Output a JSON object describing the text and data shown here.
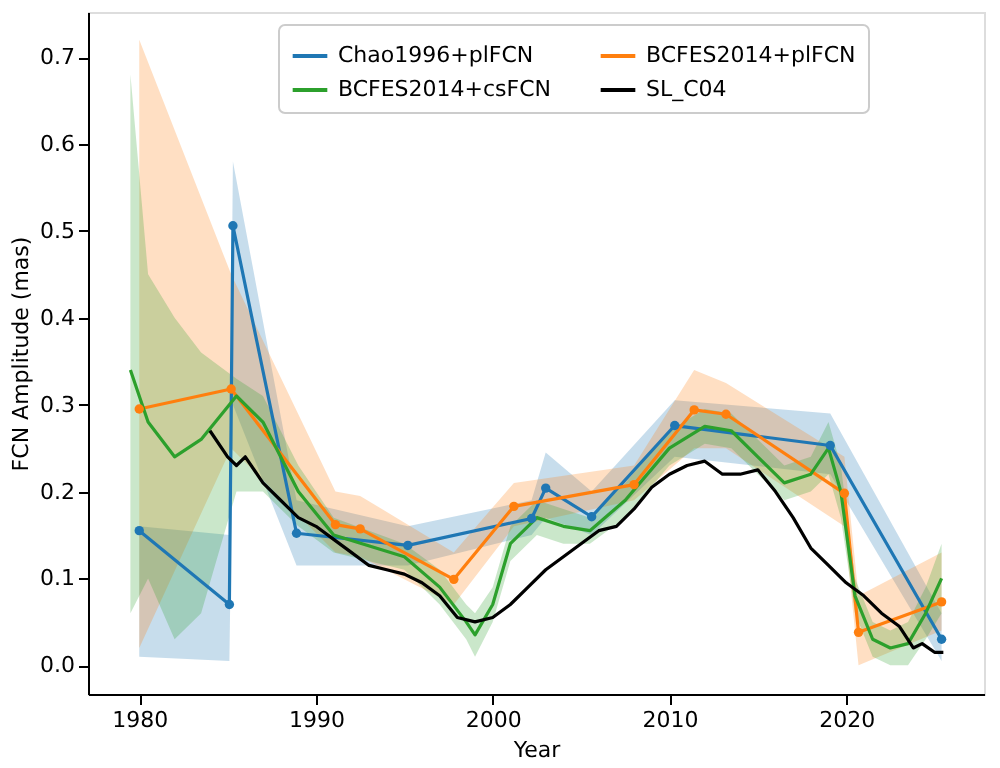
{
  "chart_data": {
    "type": "line",
    "xlabel": "Year",
    "ylabel": "FCN Amplitude (mas)",
    "xlim": [
      1977.1,
      2027.8
    ],
    "ylim": [
      -0.033,
      0.752
    ],
    "xticks": [
      1980,
      1990,
      2000,
      2010,
      2020
    ],
    "yticks": [
      {
        "value": 0,
        "label": "0.0"
      },
      0.1,
      0.2,
      0.3,
      0.4,
      0.5,
      0.6,
      0.7
    ],
    "grid": false,
    "legend": "top",
    "line_style": "solid",
    "series": [
      {
        "name": "Chao1996+plFCN",
        "color": "#1f77b4",
        "marker": "circle",
        "x": [
          1980,
          1985.1,
          1985.3,
          1988.9,
          1995.2,
          2002.2,
          2003,
          2005.6,
          2010.3,
          2019.1,
          2025.4
        ],
        "values": [
          0.155,
          0.07,
          0.506,
          0.152,
          0.138,
          0.169,
          0.204,
          0.171,
          0.276,
          0.253,
          0.03
        ],
        "lower": [
          0.01,
          0.005,
          0.3,
          0.115,
          0.115,
          0.15,
          0.17,
          0.15,
          0.24,
          0.22,
          0.005
        ],
        "upper": [
          0.16,
          0.15,
          0.58,
          0.19,
          0.16,
          0.19,
          0.245,
          0.2,
          0.305,
          0.29,
          0.06
        ]
      },
      {
        "name": "BCFES2014+plFCN",
        "color": "#ff7f0e",
        "marker": "circle",
        "x": [
          1980,
          1985.2,
          1991.1,
          1992.5,
          1997.8,
          2001.2,
          2008,
          2011.4,
          2013.2,
          2019.9,
          2020.7,
          2025.4
        ],
        "values": [
          0.295,
          0.318,
          0.162,
          0.157,
          0.099,
          0.183,
          0.208,
          0.294,
          0.289,
          0.198,
          0.038,
          0.073
        ],
        "lower": [
          0.02,
          0.25,
          0.13,
          0.125,
          0.07,
          0.16,
          0.19,
          0.25,
          0.25,
          0.16,
          0.0,
          0.04
        ],
        "upper": [
          0.72,
          0.45,
          0.2,
          0.195,
          0.13,
          0.21,
          0.23,
          0.34,
          0.325,
          0.24,
          0.08,
          0.13
        ]
      },
      {
        "name": "BCFES2014+csFCN",
        "color": "#2ca02c",
        "marker": "none",
        "x": [
          1979.5,
          1980.5,
          1982,
          1983.5,
          1985.5,
          1987,
          1989,
          1991,
          1995,
          1997,
          1998.5,
          1999,
          2000,
          2001,
          2002.5,
          2004,
          2005.5,
          2007.5,
          2010,
          2012,
          2013.5,
          2015,
          2016.5,
          2018,
          2019,
          2019.7,
          2020.5,
          2021.5,
          2022.5,
          2023.5,
          2024.5,
          2025.4
        ],
        "values": [
          0.34,
          0.28,
          0.24,
          0.26,
          0.31,
          0.28,
          0.2,
          0.15,
          0.125,
          0.09,
          0.05,
          0.035,
          0.07,
          0.14,
          0.17,
          0.16,
          0.155,
          0.19,
          0.25,
          0.275,
          0.27,
          0.24,
          0.21,
          0.22,
          0.25,
          0.2,
          0.08,
          0.03,
          0.02,
          0.025,
          0.06,
          0.1
        ],
        "lower": [
          0.06,
          0.1,
          0.03,
          0.06,
          0.2,
          0.2,
          0.16,
          0.13,
          0.11,
          0.07,
          0.03,
          0.01,
          0.05,
          0.12,
          0.15,
          0.14,
          0.14,
          0.17,
          0.23,
          0.255,
          0.25,
          0.22,
          0.19,
          0.2,
          0.22,
          0.17,
          0.06,
          0.01,
          0.0,
          0.0,
          0.03,
          0.06
        ],
        "upper": [
          0.68,
          0.45,
          0.4,
          0.36,
          0.33,
          0.31,
          0.23,
          0.17,
          0.14,
          0.11,
          0.07,
          0.06,
          0.09,
          0.16,
          0.19,
          0.18,
          0.17,
          0.21,
          0.27,
          0.295,
          0.29,
          0.26,
          0.23,
          0.24,
          0.28,
          0.23,
          0.1,
          0.05,
          0.04,
          0.05,
          0.09,
          0.14
        ]
      },
      {
        "name": "SL_C04",
        "color": "#000000",
        "marker": "none",
        "x": [
          1984,
          1985,
          1985.5,
          1986,
          1987,
          1988,
          1989,
          1990,
          1991,
          1992,
          1993,
          1994,
          1995,
          1996,
          1997,
          1998,
          1999,
          2000,
          2001,
          2002,
          2003,
          2004,
          2005,
          2006,
          2007,
          2008,
          2009,
          2010,
          2011,
          2012,
          2013,
          2014,
          2015,
          2016,
          2017,
          2018,
          2019,
          2020,
          2021,
          2022,
          2023,
          2023.8,
          2024.3,
          2025,
          2025.5
        ],
        "values": [
          0.27,
          0.24,
          0.23,
          0.24,
          0.21,
          0.19,
          0.17,
          0.16,
          0.145,
          0.13,
          0.115,
          0.11,
          0.105,
          0.095,
          0.08,
          0.055,
          0.05,
          0.055,
          0.07,
          0.09,
          0.11,
          0.125,
          0.14,
          0.155,
          0.16,
          0.18,
          0.205,
          0.22,
          0.23,
          0.235,
          0.22,
          0.22,
          0.225,
          0.2,
          0.17,
          0.135,
          0.115,
          0.095,
          0.08,
          0.06,
          0.045,
          0.02,
          0.025,
          0.015,
          0.015
        ]
      }
    ]
  }
}
